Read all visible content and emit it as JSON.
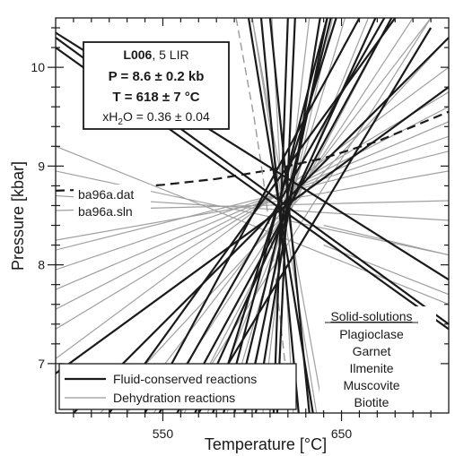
{
  "chart_data": {
    "type": "line",
    "xlabel": "Temperature [°C]",
    "ylabel": "Pressure [kbar]",
    "xlim": [
      490,
      710
    ],
    "ylim": [
      6.5,
      10.5
    ],
    "x_ticks": [
      550,
      650
    ],
    "x_tick_labels": [
      "550",
      "650"
    ],
    "y_ticks": [
      7,
      8,
      9,
      10
    ],
    "y_tick_labels": [
      "7",
      "8",
      "9",
      "10"
    ],
    "grid": false,
    "legend_position": "bottom-left",
    "legend": [
      {
        "label": "Fluid-conserved reactions",
        "color": "#1a1a1a",
        "width": 2.2
      },
      {
        "label": "Dehydration reactions",
        "color": "#999999",
        "width": 1.2
      }
    ],
    "result_box": {
      "sample": "L006",
      "sample_suffix": ", 5 LIR",
      "pressure": "P = 8.6 ± 0.2 kb",
      "temperature": "T = 618 ± 7 °C",
      "xh2o_prefix": "xH",
      "xh2o_sub": "2",
      "xh2o_suffix": "O = 0.36 ± 0.04"
    },
    "data_files": [
      "ba96a.dat",
      "ba96a.sln"
    ],
    "solid_solutions": {
      "title": "Solid-solutions",
      "items": [
        "Plagioclase",
        "Garnet",
        "Ilmenite",
        "Muscovite",
        "Biotite"
      ]
    },
    "intersection": {
      "x": 618,
      "y": 8.6
    },
    "series": [
      {
        "kind": "curve",
        "style": "dashed",
        "color": "#1a1a1a",
        "width": 2.2,
        "x": [
          490,
          520,
          550,
          580,
          610,
          640,
          670,
          710
        ],
        "y": [
          8.75,
          8.77,
          8.81,
          8.87,
          8.96,
          9.08,
          9.25,
          9.55
        ]
      },
      {
        "kind": "curve",
        "style": "dashed",
        "color": "#9a9a9a",
        "width": 1.4,
        "x": [
          591,
          596,
          601,
          606,
          611,
          616,
          619
        ],
        "y": [
          10.5,
          10.0,
          9.5,
          8.9,
          8.2,
          7.4,
          6.9
        ]
      },
      {
        "kind": "fluid",
        "color": "#1a1a1a",
        "width": 2.2,
        "x": [
          490,
          710
        ],
        "y": [
          10.35,
          7.85
        ]
      },
      {
        "kind": "fluid",
        "color": "#1a1a1a",
        "width": 2.2,
        "x": [
          490,
          710
        ],
        "y": [
          10.3,
          7.4
        ]
      },
      {
        "kind": "fluid",
        "color": "#1a1a1a",
        "width": 2.2,
        "x": [
          490,
          710
        ],
        "y": [
          10.2,
          7.35
        ]
      },
      {
        "kind": "fluid",
        "color": "#1a1a1a",
        "width": 2.2,
        "x": [
          500,
          710
        ],
        "y": [
          6.5,
          10.3
        ]
      },
      {
        "kind": "fluid",
        "color": "#1a1a1a",
        "width": 2.2,
        "x": [
          490,
          710
        ],
        "y": [
          6.9,
          9.8
        ]
      },
      {
        "kind": "fluid",
        "color": "#1a1a1a",
        "width": 2.2,
        "x": [
          540,
          660
        ],
        "y": [
          6.5,
          10.5
        ]
      },
      {
        "kind": "fluid",
        "color": "#1a1a1a",
        "width": 2.2,
        "x": [
          548,
          674
        ],
        "y": [
          6.5,
          10.5
        ]
      },
      {
        "kind": "fluid",
        "color": "#1a1a1a",
        "width": 2.2,
        "x": [
          558,
          678
        ],
        "y": [
          6.5,
          10.5
        ]
      },
      {
        "kind": "fluid",
        "color": "#1a1a1a",
        "width": 2.2,
        "x": [
          568,
          669
        ],
        "y": [
          6.5,
          10.5
        ]
      },
      {
        "kind": "fluid",
        "color": "#1a1a1a",
        "width": 2.2,
        "x": [
          578,
          647
        ],
        "y": [
          6.5,
          10.5
        ]
      },
      {
        "kind": "fluid",
        "color": "#1a1a1a",
        "width": 2.2,
        "x": [
          584,
          642
        ],
        "y": [
          6.5,
          10.5
        ]
      },
      {
        "kind": "fluid",
        "color": "#1a1a1a",
        "width": 2.2,
        "x": [
          590,
          644
        ],
        "y": [
          6.5,
          10.5
        ]
      },
      {
        "kind": "fluid",
        "color": "#1a1a1a",
        "width": 2.2,
        "x": [
          596,
          642
        ],
        "y": [
          6.5,
          10.5
        ]
      },
      {
        "kind": "fluid",
        "color": "#1a1a1a",
        "width": 2.2,
        "x": [
          602,
          638
        ],
        "y": [
          6.5,
          10.5
        ]
      },
      {
        "kind": "fluid",
        "color": "#1a1a1a",
        "width": 2.2,
        "x": [
          614,
          624
        ],
        "y": [
          6.5,
          10.5
        ]
      },
      {
        "kind": "fluid",
        "color": "#1a1a1a",
        "width": 2.2,
        "x": [
          612,
          620
        ],
        "y": [
          6.5,
          10.5
        ]
      },
      {
        "kind": "fluid",
        "color": "#1a1a1a",
        "width": 2.2,
        "x": [
          605,
          626
        ],
        "y": [
          10.5,
          6.5
        ]
      },
      {
        "kind": "fluid",
        "color": "#1a1a1a",
        "width": 2.2,
        "x": [
          598,
          634
        ],
        "y": [
          10.5,
          6.5
        ]
      },
      {
        "kind": "fluid",
        "color": "#1a1a1a",
        "width": 2.2,
        "x": [
          610,
          632
        ],
        "y": [
          10.5,
          6.5
        ]
      },
      {
        "kind": "fluid",
        "color": "#1a1a1a",
        "width": 2.2,
        "x": [
          570,
          700
        ],
        "y": [
          6.5,
          10.4
        ]
      },
      {
        "kind": "fluid",
        "color": "#1a1a1a",
        "width": 2.2,
        "x": [
          520,
          680
        ],
        "y": [
          6.5,
          10.5
        ]
      },
      {
        "kind": "dehydration",
        "color": "#a0a0a0",
        "width": 1.2,
        "x": [
          490,
          710
        ],
        "y": [
          9.2,
          7.6
        ]
      },
      {
        "kind": "dehydration",
        "color": "#a0a0a0",
        "width": 1.2,
        "x": [
          490,
          710
        ],
        "y": [
          8.25,
          8.95
        ]
      },
      {
        "kind": "dehydration",
        "color": "#a0a0a0",
        "width": 1.2,
        "x": [
          490,
          710
        ],
        "y": [
          8.15,
          9.15
        ]
      },
      {
        "kind": "dehydration",
        "color": "#a0a0a0",
        "width": 1.2,
        "x": [
          490,
          710
        ],
        "y": [
          7.95,
          9.3
        ]
      },
      {
        "kind": "dehydration",
        "color": "#a0a0a0",
        "width": 1.2,
        "x": [
          490,
          710
        ],
        "y": [
          7.75,
          9.45
        ]
      },
      {
        "kind": "dehydration",
        "color": "#a0a0a0",
        "width": 1.2,
        "x": [
          490,
          710
        ],
        "y": [
          7.55,
          9.6
        ]
      },
      {
        "kind": "dehydration",
        "color": "#a0a0a0",
        "width": 1.2,
        "x": [
          490,
          710
        ],
        "y": [
          7.35,
          9.75
        ]
      },
      {
        "kind": "dehydration",
        "color": "#a0a0a0",
        "width": 1.2,
        "x": [
          490,
          710
        ],
        "y": [
          7.05,
          10.0
        ]
      },
      {
        "kind": "dehydration",
        "color": "#a0a0a0",
        "width": 1.2,
        "x": [
          490,
          710
        ],
        "y": [
          8.55,
          8.65
        ]
      },
      {
        "kind": "dehydration",
        "color": "#a0a0a0",
        "width": 1.2,
        "x": [
          490,
          710
        ],
        "y": [
          8.95,
          8.1
        ]
      },
      {
        "kind": "dehydration",
        "color": "#a0a0a0",
        "width": 1.2,
        "x": [
          490,
          710
        ],
        "y": [
          8.7,
          8.45
        ]
      },
      {
        "kind": "dehydration",
        "color": "#a0a0a0",
        "width": 1.2,
        "x": [
          515,
          710
        ],
        "y": [
          6.5,
          10.3
        ]
      },
      {
        "kind": "dehydration",
        "color": "#a0a0a0",
        "width": 1.2,
        "x": [
          530,
          700
        ],
        "y": [
          6.5,
          10.5
        ]
      },
      {
        "kind": "dehydration",
        "color": "#a0a0a0",
        "width": 1.2,
        "x": [
          545,
          690
        ],
        "y": [
          6.5,
          10.5
        ]
      },
      {
        "kind": "dehydration",
        "color": "#a0a0a0",
        "width": 1.2,
        "x": [
          562,
          678
        ],
        "y": [
          6.5,
          10.5
        ]
      },
      {
        "kind": "dehydration",
        "color": "#a0a0a0",
        "width": 1.2,
        "x": [
          586,
          652
        ],
        "y": [
          6.5,
          10.5
        ]
      },
      {
        "kind": "dehydration",
        "color": "#a0a0a0",
        "width": 1.2,
        "x": [
          606,
          632
        ],
        "y": [
          6.5,
          10.5
        ]
      },
      {
        "kind": "dehydration",
        "color": "#a0a0a0",
        "width": 1.2,
        "x": [
          623,
          611
        ],
        "y": [
          6.5,
          10.5
        ]
      },
      {
        "kind": "dehydration",
        "color": "#a0a0a0",
        "width": 1.2,
        "x": [
          640,
          600
        ],
        "y": [
          6.5,
          10.5
        ]
      },
      {
        "kind": "dehydration",
        "color": "#a0a0a0",
        "width": 1.2,
        "x": [
          600,
          636
        ],
        "y": [
          10.5,
          6.5
        ]
      },
      {
        "kind": "dehydration",
        "color": "#a0a0a0",
        "width": 1.2,
        "x": [
          640,
          710
        ],
        "y": [
          8.2,
          7.7
        ]
      },
      {
        "kind": "dehydration",
        "color": "#a0a0a0",
        "width": 1.2,
        "x": [
          640,
          710
        ],
        "y": [
          8.4,
          8.1
        ]
      },
      {
        "kind": "dehydration",
        "color": "#a0a0a0",
        "width": 1.2,
        "x": [
          560,
          700
        ],
        "y": [
          6.5,
          10.5
        ]
      },
      {
        "kind": "dehydration",
        "color": "#a0a0a0",
        "width": 1.2,
        "x": [
          575,
          665
        ],
        "y": [
          6.5,
          10.5
        ]
      },
      {
        "kind": "dehydration",
        "color": "#a0a0a0",
        "width": 1.2,
        "x": [
          595,
          645
        ],
        "y": [
          6.5,
          10.5
        ]
      }
    ]
  }
}
